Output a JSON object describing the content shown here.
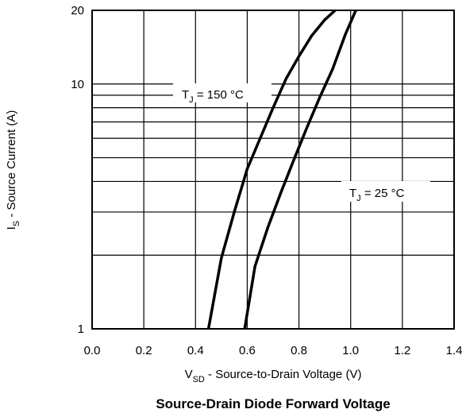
{
  "chart_data": {
    "type": "line",
    "title": "Source-Drain Diode Forward Voltage",
    "xlabel": {
      "main": "V",
      "sub": "SD",
      "rest": " - Source-to-Drain Voltage (V)"
    },
    "ylabel": {
      "main": "I",
      "sub": "S",
      "rest": " - Source Current (A)"
    },
    "xlim": [
      0.0,
      1.4
    ],
    "ylim": [
      1,
      20
    ],
    "yscale": "log",
    "xticks": [
      0.0,
      0.2,
      0.4,
      0.6,
      0.8,
      1.0,
      1.2,
      1.4
    ],
    "xtick_labels": [
      "0.0",
      "0.2",
      "0.4",
      "0.6",
      "0.8",
      "1.0",
      "1.2",
      "1.4"
    ],
    "yticks_labeled": [
      1,
      10,
      20
    ],
    "ytick_labels": [
      "1",
      "10",
      "20"
    ],
    "y_gridlines": [
      1,
      2,
      3,
      4,
      5,
      6,
      7,
      8,
      9,
      10,
      20
    ],
    "grid": true,
    "series": [
      {
        "name": "TJ = 150 °C",
        "label": {
          "main": "T",
          "sub": "J",
          "rest": " = 150 °C"
        },
        "x": [
          0.45,
          0.5,
          0.55,
          0.6,
          0.65,
          0.7,
          0.75,
          0.8,
          0.85,
          0.9,
          0.94
        ],
        "y": [
          1.0,
          1.95,
          3.0,
          4.5,
          6.0,
          8.0,
          10.5,
          13.0,
          15.8,
          18.3,
          20.0
        ]
      },
      {
        "name": "TJ = 25 °C",
        "label": {
          "main": "T",
          "sub": "J",
          "rest": " = 25 °C"
        },
        "x": [
          0.59,
          0.63,
          0.68,
          0.73,
          0.78,
          0.83,
          0.88,
          0.93,
          0.98,
          1.02
        ],
        "y": [
          1.0,
          1.8,
          2.6,
          3.6,
          4.9,
          6.6,
          8.8,
          11.5,
          16.0,
          20.0
        ]
      }
    ]
  }
}
